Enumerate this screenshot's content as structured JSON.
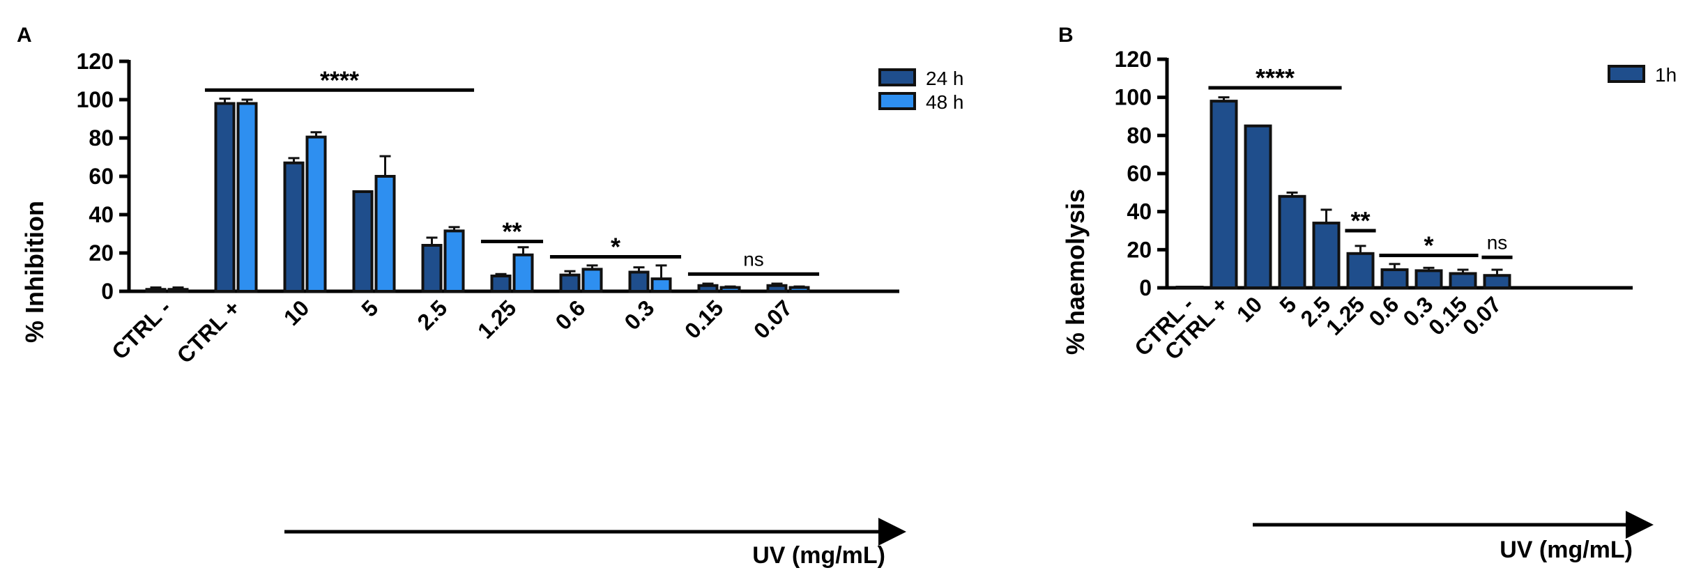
{
  "figure": {
    "panels": [
      "A",
      "B"
    ]
  },
  "colors": {
    "dark_blue": "#1F4E8C",
    "light_blue": "#2E8FF0",
    "bar_edge": "#111111",
    "text": "#000000"
  },
  "chart_data": [
    {
      "panel": "A",
      "type": "bar",
      "title": "",
      "xlabel": "UV (mg/mL)",
      "ylabel": "% Inhibition",
      "ylim": [
        0,
        120
      ],
      "yticks": [
        "0",
        "20",
        "40",
        "60",
        "80",
        "100",
        "120"
      ],
      "categories": [
        "CTRL -",
        "CTRL +",
        "10",
        "5",
        "2.5",
        "1.25",
        "0.6",
        "0.3",
        "0.15",
        "0.07"
      ],
      "legend": [
        "24 h",
        "48 h"
      ],
      "legend_position": "top-right",
      "series": [
        {
          "name": "24 h",
          "color": "#1F4E8C",
          "values": [
            1,
            98,
            67,
            52,
            24,
            8,
            8.5,
            10,
            3,
            3
          ],
          "errors": [
            1,
            2.5,
            2.5,
            0,
            4,
            1,
            2,
            2.5,
            1,
            1
          ]
        },
        {
          "name": "48 h",
          "color": "#2E8FF0",
          "values": [
            1,
            98,
            80.5,
            60,
            31.5,
            19,
            11.5,
            6.5,
            2,
            2
          ],
          "errors": [
            1,
            2,
            2.5,
            10.5,
            2,
            4,
            2,
            7,
            0.5,
            0.5
          ]
        }
      ],
      "significance": [
        {
          "label": "****",
          "from": 1,
          "to": 4,
          "y": 105
        },
        {
          "label": "**",
          "from": 5,
          "to": 5,
          "y": 26
        },
        {
          "label": "*",
          "from": 6,
          "to": 7,
          "y": 18
        },
        {
          "label": "ns",
          "from": 8,
          "to": 9,
          "y": 9
        }
      ]
    },
    {
      "panel": "B",
      "type": "bar",
      "title": "",
      "xlabel": "UV (mg/mL)",
      "ylabel": "% haemolysis",
      "ylim": [
        0,
        120
      ],
      "yticks": [
        "0",
        "20",
        "40",
        "60",
        "80",
        "100",
        "120"
      ],
      "categories": [
        "CTRL -",
        "CTRL +",
        "10",
        "5",
        "2.5",
        "1.25",
        "0.6",
        "0.3",
        "0.15",
        "0.07"
      ],
      "legend": [
        "1h"
      ],
      "legend_position": "top-right",
      "series": [
        {
          "name": "1h",
          "color": "#1F4E8C",
          "values": [
            0.3,
            98,
            85,
            48,
            34,
            18,
            9.5,
            9,
            7.5,
            6.5
          ],
          "errors": [
            0,
            2,
            0,
            2,
            7,
            4,
            3,
            1.5,
            2,
            3
          ]
        }
      ],
      "significance": [
        {
          "label": "****",
          "from": 1,
          "to": 4,
          "y": 105
        },
        {
          "label": "**",
          "from": 5,
          "to": 5,
          "y": 30
        },
        {
          "label": "*",
          "from": 6,
          "to": 8,
          "y": 17
        },
        {
          "label": "ns",
          "from": 9,
          "to": 9,
          "y": 16
        }
      ]
    }
  ]
}
